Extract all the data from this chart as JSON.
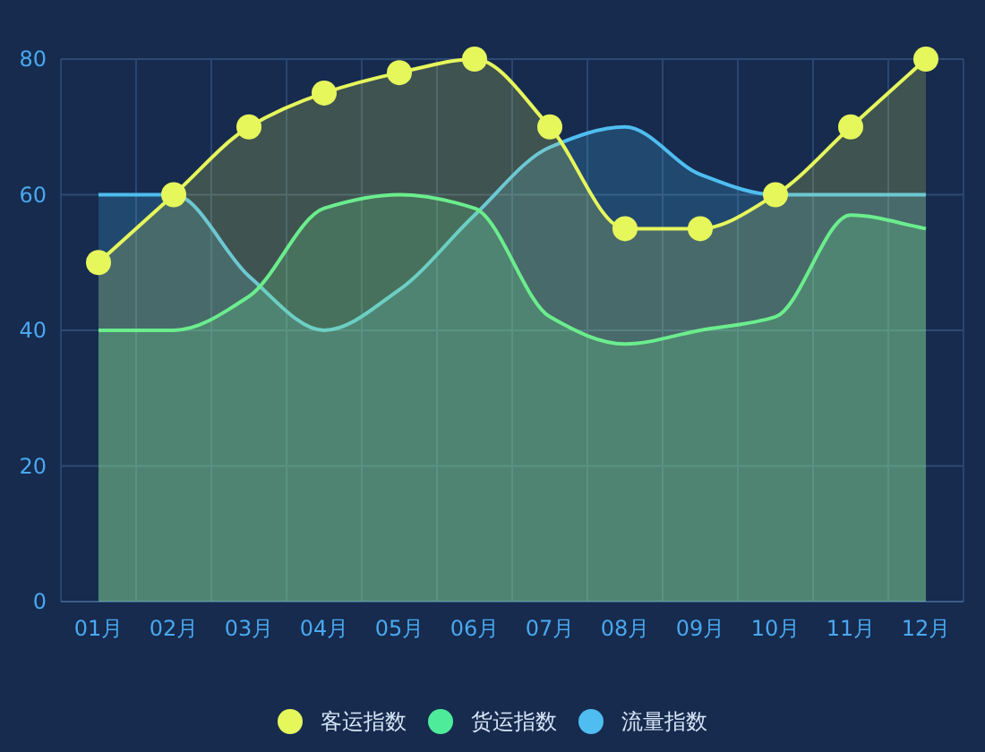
{
  "chart_data": {
    "type": "area",
    "categories": [
      "01月",
      "02月",
      "03月",
      "04月",
      "05月",
      "06月",
      "07月",
      "08月",
      "09月",
      "10月",
      "11月",
      "12月"
    ],
    "series": [
      {
        "name": "客运指数",
        "color": "#e6f75c",
        "marker": "circle",
        "values": [
          50,
          60,
          70,
          75,
          78,
          80,
          70,
          55,
          55,
          60,
          70,
          80
        ]
      },
      {
        "name": "货运指数",
        "color": "#4deb9a",
        "marker": "none",
        "values": [
          40,
          40,
          45,
          58,
          60,
          58,
          42,
          38,
          40,
          42,
          57,
          55
        ]
      },
      {
        "name": "流量指数",
        "color": "#4fbdf0",
        "marker": "none",
        "values": [
          60,
          60,
          48,
          40,
          46,
          57,
          67,
          70,
          63,
          60,
          60,
          60
        ]
      }
    ],
    "ylim": [
      0,
      80
    ],
    "yticks": [
      0,
      20,
      40,
      60,
      80
    ],
    "grid": true,
    "legend": "bottom"
  }
}
